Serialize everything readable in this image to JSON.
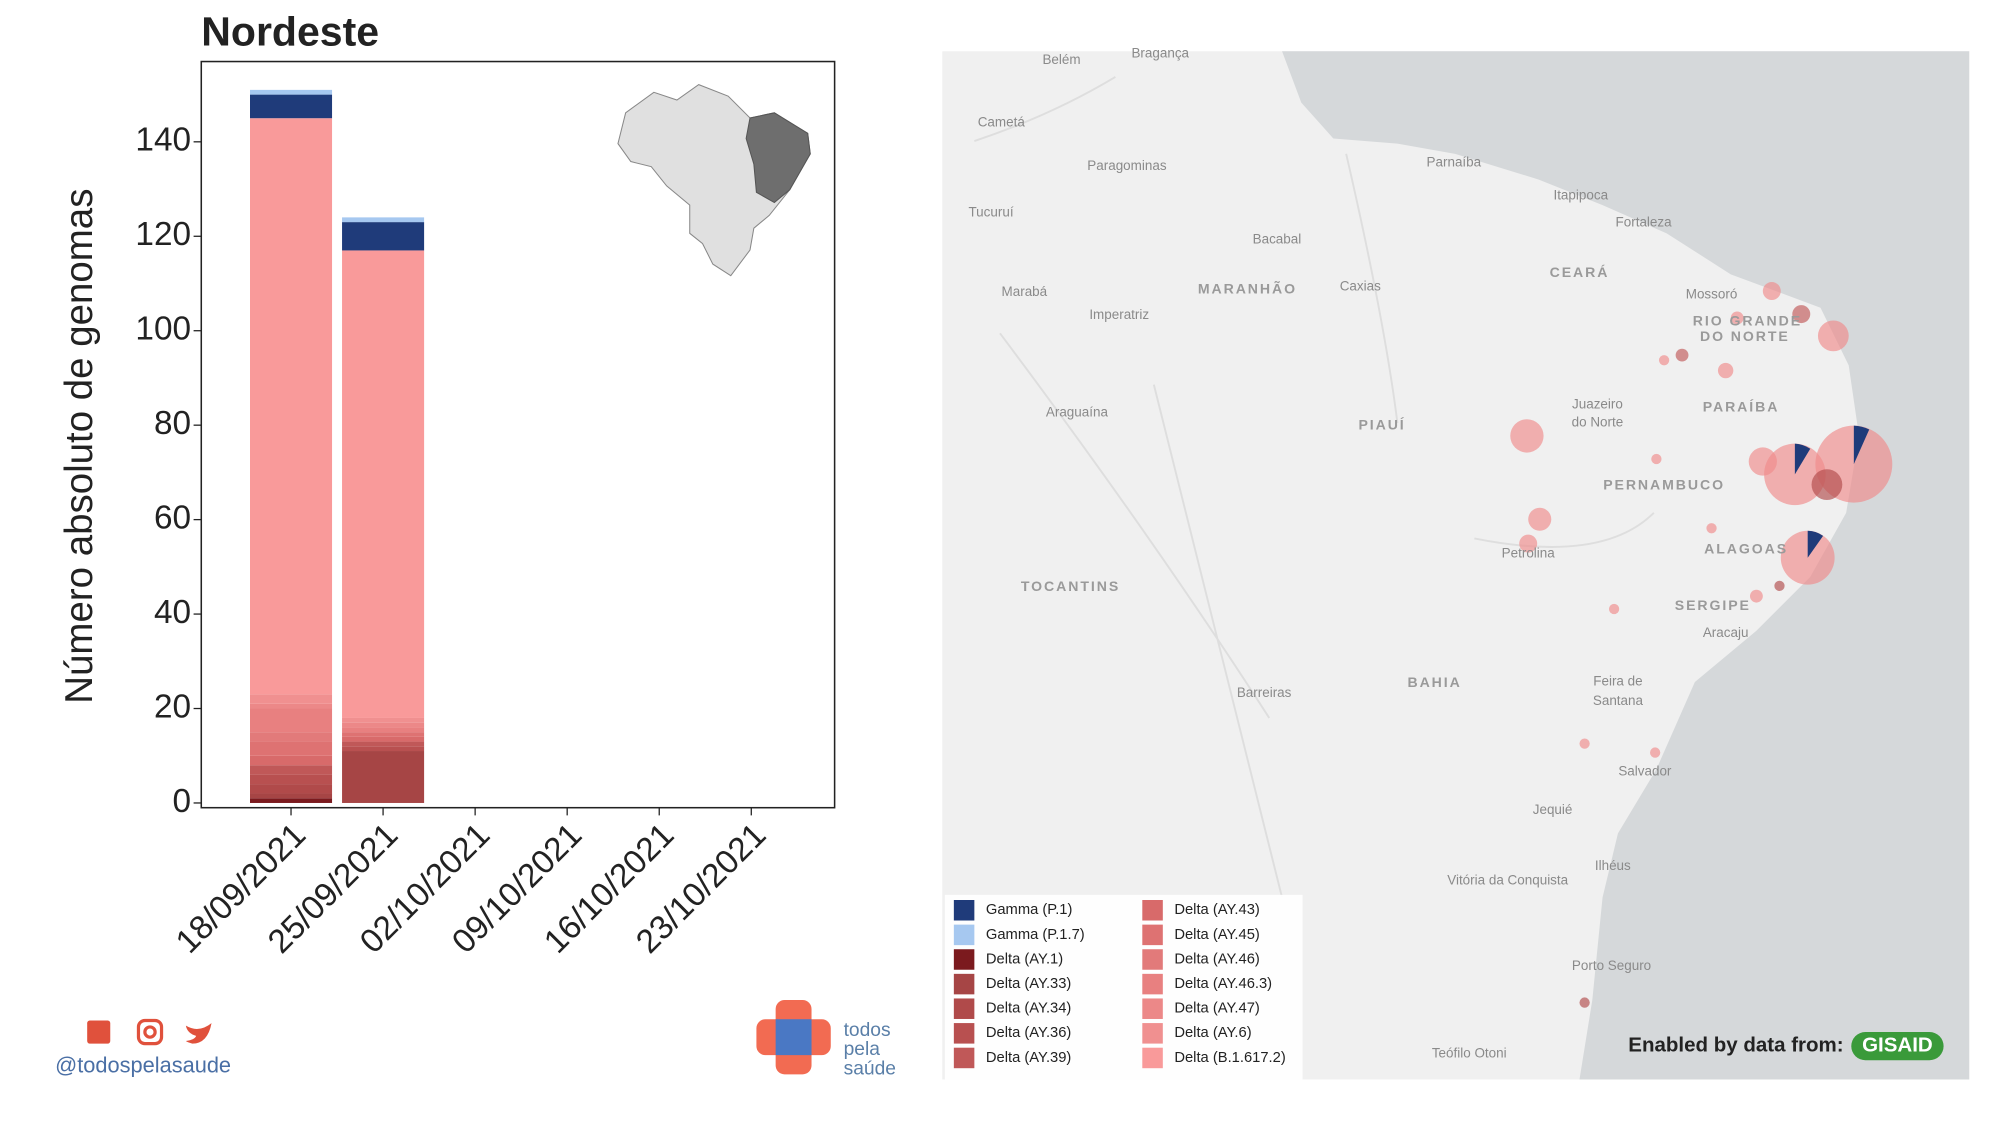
{
  "chart_data": {
    "type": "bar",
    "stacked": true,
    "title": "Nordeste",
    "y_label": "Número absoluto de genomas",
    "categories": [
      "18/09/2021",
      "25/09/2021",
      "02/10/2021",
      "09/10/2021",
      "16/10/2021",
      "23/10/2021"
    ],
    "series": [
      {
        "name": "Gamma (P.1)",
        "color": "#1f3b7a",
        "values": [
          5,
          6,
          null,
          null,
          null,
          null
        ]
      },
      {
        "name": "Gamma (P.1.7)",
        "color": "#a6c8f0",
        "values": [
          1,
          1,
          null,
          null,
          null,
          null
        ]
      },
      {
        "name": "Delta (AY.1)",
        "color": "#7b1a1e",
        "values": [
          1,
          0,
          null,
          null,
          null,
          null
        ]
      },
      {
        "name": "Delta (AY.33)",
        "color": "#a64545",
        "values": [
          1,
          11,
          null,
          null,
          null,
          null
        ]
      },
      {
        "name": "Delta (AY.34)",
        "color": "#b04a4a",
        "values": [
          2,
          0,
          null,
          null,
          null,
          null
        ]
      },
      {
        "name": "Delta (AY.36)",
        "color": "#b85050",
        "values": [
          2,
          1,
          null,
          null,
          null,
          null
        ]
      },
      {
        "name": "Delta (AY.39)",
        "color": "#c05858",
        "values": [
          2,
          1,
          null,
          null,
          null,
          null
        ]
      },
      {
        "name": "Delta (AY.43)",
        "color": "#d86a6a",
        "values": [
          2,
          1,
          null,
          null,
          null,
          null
        ]
      },
      {
        "name": "Delta (AY.45)",
        "color": "#de7272",
        "values": [
          3,
          1,
          null,
          null,
          null,
          null
        ]
      },
      {
        "name": "Delta (AY.46)",
        "color": "#e27a7a",
        "values": [
          2,
          0,
          null,
          null,
          null,
          null
        ]
      },
      {
        "name": "Delta (AY.46.3)",
        "color": "#e88080",
        "values": [
          5,
          1,
          null,
          null,
          null,
          null
        ]
      },
      {
        "name": "Delta (AY.47)",
        "color": "#ec8888",
        "values": [
          1,
          1,
          null,
          null,
          null,
          null
        ]
      },
      {
        "name": "Delta (AY.6)",
        "color": "#f09090",
        "values": [
          2,
          1,
          null,
          null,
          null,
          null
        ]
      },
      {
        "name": "Delta (B.1.617.2)",
        "color": "#f99a9a",
        "values": [
          122,
          99,
          null,
          null,
          null,
          null
        ]
      }
    ],
    "ylim": [
      -1,
      157
    ],
    "yticks": [
      0,
      20,
      40,
      60,
      80,
      100,
      120,
      140
    ]
  },
  "map": {
    "labels": [
      "Belém",
      "Bragança",
      "Cametá",
      "Paragominas",
      "Parnaíba",
      "Itapipoca",
      "Fortaleza",
      "Tucuruí",
      "Bacabal",
      "CEARÁ",
      "Marabá",
      "MARANHÃO",
      "Caxias",
      "Imperatriz",
      "Mossoró",
      "RIO GRANDE",
      "DO NORTE",
      "Araguaína",
      "PIAUÍ",
      "Juazeiro",
      "do Norte",
      "PARAÍBA",
      "PERNAMBUCO",
      "Petrolina",
      "ALAGOAS",
      "TOCANTINS",
      "SERGIPE",
      "Aracaju",
      "BAHIA",
      "Feira de",
      "Santana",
      "Barreiras",
      "Salvador",
      "Jequié",
      "Ilhéus",
      "Vitória da Conquista",
      "Porto Seguro",
      "Teófilo Otoni"
    ]
  },
  "footer": {
    "handle": "@todospelasaude",
    "logo": [
      "todos",
      "pela",
      "saúde"
    ],
    "credit": "Enabled by data from:",
    "badge": "GISAID"
  }
}
